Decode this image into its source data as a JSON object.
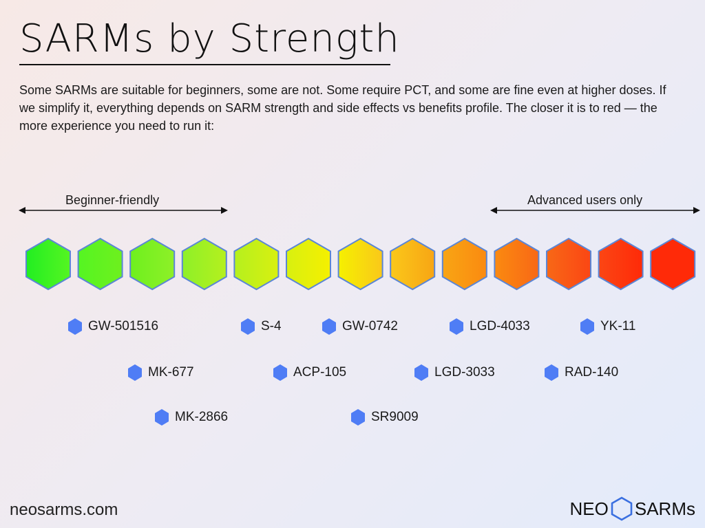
{
  "title": "SARMs by Strength",
  "intro": "Some SARMs are suitable for beginners, some are not. Some require PCT, and some are fine even at higher doses. If we simplify it, everything depends on SARM strength and side effects vs benefits profile. The closer it is to red — the more experience you need to run it:",
  "ranges": {
    "beginner": "Beginner-friendly",
    "advanced": "Advanced users only"
  },
  "strength_scale": {
    "colors": [
      "#22ee22",
      "#55f522",
      "#6ef01e",
      "#8ef028",
      "#b5f01e",
      "#d8f010",
      "#f5f000",
      "#fac81a",
      "#f8a514",
      "#fb8a10",
      "#f86816",
      "#fb4614",
      "#ff2a08"
    ],
    "outline_color": "#5b86d6"
  },
  "sarms": [
    {
      "name": "GW-501516"
    },
    {
      "name": "S-4"
    },
    {
      "name": "GW-0742"
    },
    {
      "name": "LGD-4033"
    },
    {
      "name": "YK-11"
    },
    {
      "name": "MK-677"
    },
    {
      "name": "ACP-105"
    },
    {
      "name": "LGD-3033"
    },
    {
      "name": "RAD-140"
    },
    {
      "name": "MK-2866"
    },
    {
      "name": "SR9009"
    }
  ],
  "marker_color": "#4f7df5",
  "footer": {
    "site": "neosarms.com",
    "brand_left": "NEO",
    "brand_right": "SARMs"
  }
}
